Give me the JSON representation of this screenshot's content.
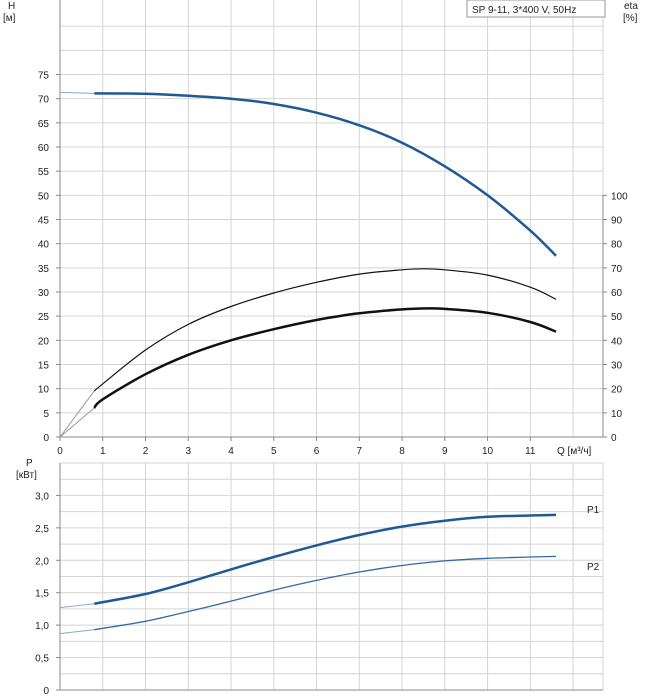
{
  "colors": {
    "grid": "#d4d4d4",
    "axis": "#888888",
    "head_curve": "#1f5a96",
    "power_curve_p1": "#1f5a96",
    "power_curve_p2": "#2e6aa8",
    "efficiency_curve": "#111111",
    "label_blue": "#2e6aa8"
  },
  "legend": {
    "text": "SP 9-11, 3*400 V, 50Hz"
  },
  "chart_data": [
    {
      "type": "line",
      "title": "",
      "xlabel": "Q [м³/ч]",
      "x_ticks": [
        "0",
        "1",
        "2",
        "3",
        "4",
        "5",
        "6",
        "7",
        "8",
        "9",
        "10",
        "11"
      ],
      "xlim": [
        0,
        12.7
      ],
      "left_axis": {
        "label_line1": "H",
        "label_line2": "[м]",
        "ylim": [
          0,
          84
        ],
        "ticks": [
          "0",
          "5",
          "10",
          "15",
          "20",
          "25",
          "30",
          "35",
          "40",
          "45",
          "50",
          "55",
          "60",
          "65",
          "70",
          "75"
        ]
      },
      "right_axis": {
        "label_line1": "eta",
        "label_line2": "[%]",
        "ylim": [
          0,
          168
        ],
        "ticks": [
          "0",
          "10",
          "20",
          "30",
          "40",
          "50",
          "60",
          "70",
          "80",
          "90",
          "100"
        ]
      },
      "series": [
        {
          "axis": "left",
          "style": "head",
          "x": [
            0.8,
            2,
            3,
            4,
            5,
            6,
            7,
            8,
            9,
            10,
            11,
            11.6
          ],
          "y": [
            71.1,
            71.0,
            70.6,
            70.0,
            68.9,
            67.1,
            64.5,
            60.9,
            56.0,
            50.0,
            42.7,
            37.5
          ]
        },
        {
          "axis": "left",
          "style": "head-ext",
          "x": [
            0,
            0.8
          ],
          "y": [
            71.3,
            71.1
          ]
        },
        {
          "axis": "right",
          "style": "eta-thick",
          "x": [
            0.8,
            1,
            2,
            3,
            4,
            5,
            6,
            7,
            8,
            8.6,
            9,
            10,
            11,
            11.6
          ],
          "y": [
            12,
            15.6,
            26,
            34,
            40,
            44.6,
            48.4,
            51.2,
            52.8,
            53.2,
            53.0,
            51.4,
            47.6,
            43.6
          ]
        },
        {
          "axis": "right",
          "style": "eta-thick-ext",
          "x": [
            0,
            0.8
          ],
          "y": [
            0,
            12
          ]
        },
        {
          "axis": "right",
          "style": "eta-thin",
          "x": [
            0.8,
            1,
            2,
            3,
            4,
            5,
            6,
            7,
            8,
            8.5,
            9,
            10,
            11,
            11.6
          ],
          "y": [
            19,
            22,
            36,
            46.6,
            54,
            59.6,
            64,
            67.4,
            69.2,
            69.6,
            69.2,
            67,
            62,
            57
          ]
        },
        {
          "axis": "right",
          "style": "eta-thin-ext",
          "x": [
            0,
            0.8
          ],
          "y": [
            0,
            19
          ]
        }
      ]
    },
    {
      "type": "line",
      "title": "",
      "xlabel": "",
      "xlim": [
        0,
        12.7
      ],
      "left_axis": {
        "label_line1": "P",
        "label_line2": "[кВт]",
        "ylim": [
          0,
          3.5
        ],
        "ticks": [
          "0",
          "0,5",
          "1,0",
          "1,5",
          "2,0",
          "2,5",
          "3,0"
        ]
      },
      "series": [
        {
          "name": "P1",
          "style": "p1",
          "x": [
            0.8,
            2,
            3,
            4,
            5,
            6,
            7,
            8,
            9,
            10,
            11,
            11.6
          ],
          "y": [
            1.33,
            1.48,
            1.66,
            1.86,
            2.05,
            2.23,
            2.39,
            2.52,
            2.61,
            2.67,
            2.69,
            2.7
          ]
        },
        {
          "style": "p1-ext",
          "x": [
            0,
            0.8
          ],
          "y": [
            1.27,
            1.33
          ]
        },
        {
          "name": "P2",
          "style": "p2",
          "x": [
            0.8,
            2,
            3,
            4,
            5,
            6,
            7,
            8,
            9,
            10,
            11,
            11.6
          ],
          "y": [
            0.93,
            1.06,
            1.21,
            1.37,
            1.54,
            1.69,
            1.82,
            1.92,
            1.99,
            2.03,
            2.05,
            2.06
          ]
        },
        {
          "style": "p2-ext",
          "x": [
            0,
            0.8
          ],
          "y": [
            0.87,
            0.93
          ]
        }
      ]
    }
  ]
}
